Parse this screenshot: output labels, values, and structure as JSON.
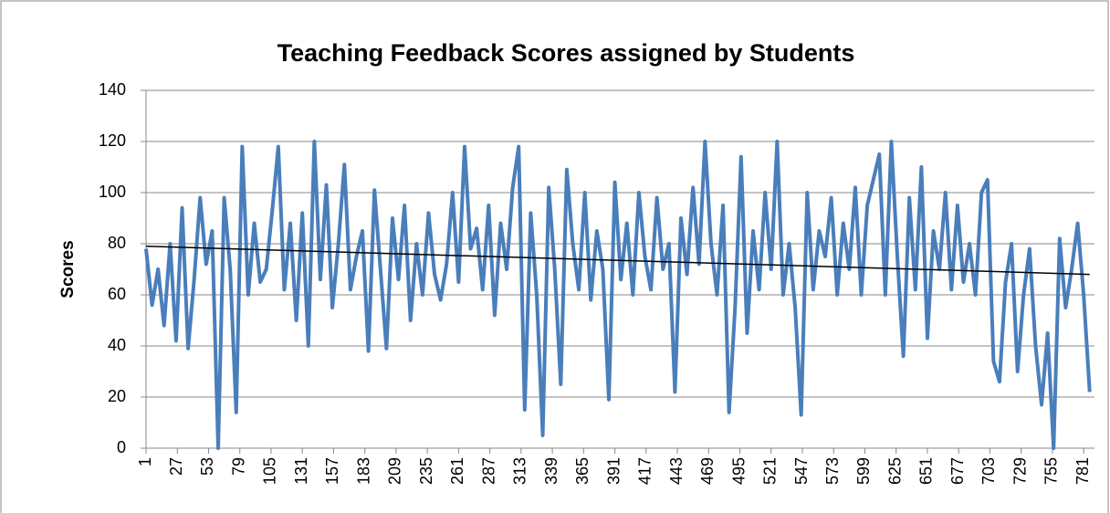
{
  "chart_data": {
    "type": "line",
    "title": "Teaching Feedback Scores assigned by Students",
    "ylabel": "Scores",
    "color": "#4a7ebb",
    "grid": true,
    "xlim": [
      1,
      790
    ],
    "xticks": [
      1,
      27,
      53,
      79,
      105,
      131,
      157,
      183,
      209,
      235,
      261,
      287,
      313,
      339,
      365,
      391,
      417,
      443,
      469,
      495,
      521,
      547,
      573,
      599,
      625,
      651,
      677,
      703,
      729,
      755,
      781
    ],
    "ylim": [
      0,
      140
    ],
    "yticks": [
      0,
      20,
      40,
      60,
      80,
      100,
      120,
      140
    ],
    "x": [
      1,
      6,
      11,
      16,
      21,
      26,
      31,
      36,
      41,
      46,
      51,
      56,
      61,
      66,
      71,
      76,
      81,
      86,
      91,
      96,
      101,
      106,
      111,
      116,
      121,
      126,
      131,
      136,
      141,
      146,
      151,
      156,
      161,
      166,
      171,
      176,
      181,
      186,
      191,
      196,
      201,
      206,
      211,
      216,
      221,
      226,
      231,
      236,
      241,
      246,
      251,
      256,
      261,
      266,
      271,
      276,
      281,
      286,
      291,
      296,
      301,
      306,
      311,
      316,
      321,
      326,
      331,
      336,
      341,
      346,
      351,
      356,
      361,
      366,
      371,
      376,
      381,
      386,
      391,
      396,
      401,
      406,
      411,
      416,
      421,
      426,
      431,
      436,
      441,
      446,
      451,
      456,
      461,
      466,
      471,
      476,
      481,
      486,
      491,
      496,
      501,
      506,
      511,
      516,
      521,
      526,
      531,
      536,
      541,
      546,
      551,
      556,
      561,
      566,
      571,
      576,
      581,
      586,
      591,
      596,
      601,
      606,
      611,
      616,
      621,
      626,
      631,
      636,
      641,
      646,
      651,
      656,
      661,
      666,
      671,
      676,
      681,
      686,
      691,
      696,
      701,
      706,
      711,
      716,
      721,
      726,
      731,
      736,
      741,
      746,
      751,
      756,
      761,
      766,
      771,
      776,
      781,
      786
    ],
    "values": [
      78,
      56,
      70,
      48,
      80,
      42,
      94,
      39,
      66,
      98,
      72,
      85,
      0,
      98,
      70,
      14,
      118,
      60,
      88,
      65,
      70,
      93,
      118,
      62,
      88,
      50,
      92,
      40,
      120,
      66,
      103,
      55,
      80,
      111,
      62,
      75,
      85,
      38,
      101,
      70,
      39,
      90,
      66,
      95,
      50,
      80,
      60,
      92,
      68,
      58,
      72,
      100,
      65,
      118,
      78,
      86,
      62,
      95,
      52,
      88,
      70,
      102,
      118,
      15,
      92,
      60,
      5,
      102,
      70,
      25,
      109,
      80,
      62,
      100,
      58,
      85,
      70,
      19,
      104,
      66,
      88,
      60,
      100,
      75,
      62,
      98,
      70,
      80,
      22,
      90,
      68,
      102,
      72,
      120,
      80,
      60,
      95,
      14,
      55,
      114,
      45,
      85,
      62,
      100,
      70,
      120,
      60,
      80,
      55,
      13,
      100,
      62,
      85,
      75,
      98,
      60,
      88,
      70,
      102,
      60,
      95,
      105,
      115,
      60,
      120,
      75,
      36,
      98,
      62,
      110,
      43,
      85,
      70,
      100,
      62,
      95,
      65,
      80,
      60,
      100,
      105,
      34,
      26,
      65,
      80,
      30,
      60,
      78,
      40,
      17,
      45,
      0,
      82,
      55,
      70,
      88,
      60,
      22
    ],
    "trendline": {
      "x": [
        1,
        786
      ],
      "values": [
        79,
        68
      ],
      "color": "#000000"
    }
  }
}
